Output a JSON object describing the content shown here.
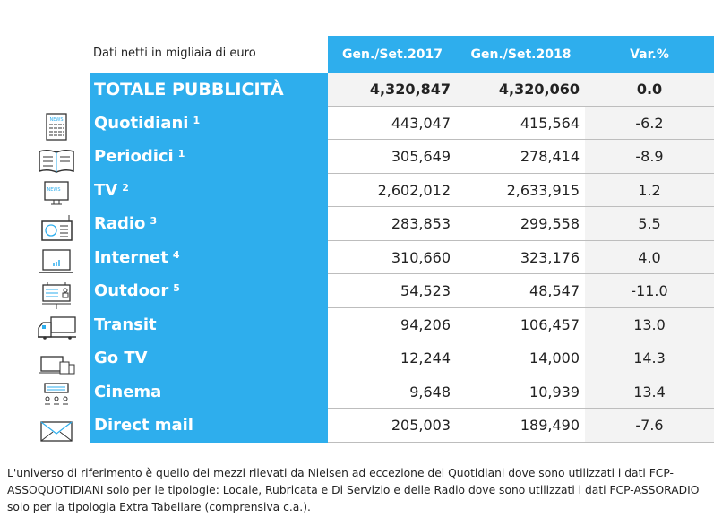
{
  "caption": "Dati netti in migliaia di euro",
  "headers": [
    "Gen./Set.2017",
    "Gen./Set.2018",
    "Var.%"
  ],
  "rows": [
    {
      "label": "TOTALE PUBBLICITÀ",
      "note": "",
      "icon": "",
      "v2017": "4,320,847",
      "v2018": "4,320,060",
      "var": "0.0"
    },
    {
      "label": "Quotidiani",
      "note": "1",
      "icon": "newspaper-icon",
      "v2017": "443,047",
      "v2018": "415,564",
      "var": "-6.2"
    },
    {
      "label": "Periodici",
      "note": "1",
      "icon": "magazine-icon",
      "v2017": "305,649",
      "v2018": "278,414",
      "var": "-8.9"
    },
    {
      "label": "TV",
      "note": "2",
      "icon": "tv-icon",
      "v2017": "2,602,012",
      "v2018": "2,633,915",
      "var": "1.2"
    },
    {
      "label": "Radio",
      "note": "3",
      "icon": "radio-icon",
      "v2017": "283,853",
      "v2018": "299,558",
      "var": "5.5"
    },
    {
      "label": "Internet",
      "note": "4",
      "icon": "laptop-icon",
      "v2017": "310,660",
      "v2018": "323,176",
      "var": "4.0"
    },
    {
      "label": "Outdoor",
      "note": "5",
      "icon": "billboard-icon",
      "v2017": "54,523",
      "v2018": "48,547",
      "var": "-11.0"
    },
    {
      "label": "Transit",
      "note": "",
      "icon": "truck-icon",
      "v2017": "94,206",
      "v2018": "106,457",
      "var": "13.0"
    },
    {
      "label": "Go TV",
      "note": "",
      "icon": "devices-icon",
      "v2017": "12,244",
      "v2018": "14,000",
      "var": "14.3"
    },
    {
      "label": "Cinema",
      "note": "",
      "icon": "cinema-icon",
      "v2017": "9,648",
      "v2018": "10,939",
      "var": "13.4"
    },
    {
      "label": "Direct mail",
      "note": "",
      "icon": "envelope-icon",
      "v2017": "205,003",
      "v2018": "189,490",
      "var": "-7.6"
    }
  ],
  "icon_text": "NEWS",
  "footnote": "L'universo di riferimento è quello dei mezzi rilevati da Nielsen ad eccezione dei Quotidiani dove sono utilizzati i dati FCP-ASSOQUOTIDIANI solo per le tipologie: Locale, Rubricata e Di Servizio e delle Radio dove sono utilizzati i dati FCP-ASSORADIO solo per la tipologia Extra Tabellare (comprensiva c.a.).",
  "colors": {
    "accent": "#2eaeed",
    "gray_bg": "#f3f3f3"
  }
}
